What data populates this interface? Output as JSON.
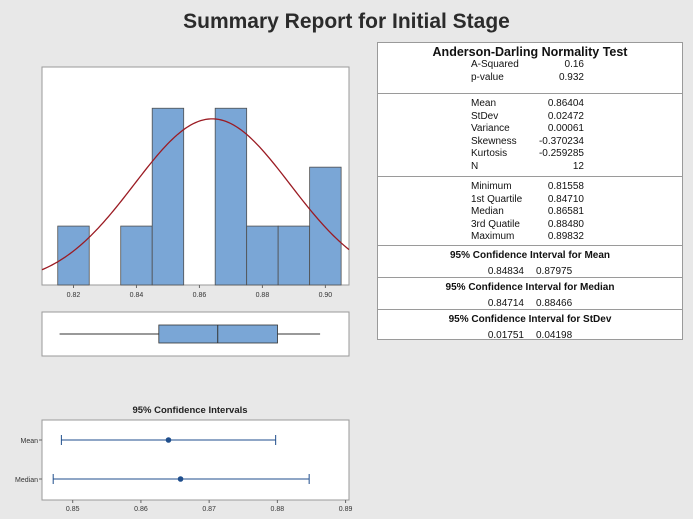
{
  "title": "Summary Report for Initial Stage",
  "stats": {
    "ad_test": {
      "title": "Anderson-Darling Normality Test",
      "rows": [
        {
          "label": "A-Squared",
          "value": "0.16"
        },
        {
          "label": "p-value",
          "value": "0.932"
        }
      ]
    },
    "descriptive": [
      {
        "label": "Mean",
        "value": "0.86404"
      },
      {
        "label": "StDev",
        "value": "0.02472"
      },
      {
        "label": "Variance",
        "value": "0.00061"
      },
      {
        "label": "Skewness",
        "value": "-0.370234"
      },
      {
        "label": "Kurtosis",
        "value": "-0.259285"
      },
      {
        "label": "N",
        "value": "12"
      }
    ],
    "quantiles": [
      {
        "label": "Minimum",
        "value": "0.81558"
      },
      {
        "label": "1st Quartile",
        "value": "0.84710"
      },
      {
        "label": "Median",
        "value": "0.86581"
      },
      {
        "label": "3rd Quatile",
        "value": "0.88480"
      },
      {
        "label": "Maximum",
        "value": "0.89832"
      }
    ],
    "ci": [
      {
        "title": "95% Confidence Interval for Mean",
        "lower": "0.84834",
        "upper": "0.87975"
      },
      {
        "title": "95% Confidence Interval for Median",
        "lower": "0.84714",
        "upper": "0.88466"
      },
      {
        "title": "95% Confidence Interval for StDev",
        "lower": "0.01751",
        "upper": "0.04198"
      }
    ]
  },
  "chart_data": [
    {
      "type": "bar",
      "subtype": "histogram",
      "bin_edges": [
        0.815,
        0.825,
        0.835,
        0.845,
        0.855,
        0.865,
        0.875,
        0.885,
        0.895,
        0.905
      ],
      "values": [
        1,
        0,
        1,
        3,
        0,
        3,
        1,
        1,
        2
      ],
      "xlim": [
        0.81,
        0.9075
      ],
      "ylim": [
        0,
        3.7
      ],
      "xticks": [
        "0.82",
        "0.84",
        "0.86",
        "0.88",
        "0.90"
      ],
      "normal_curve": {
        "mean": 0.86404,
        "stdev": 0.02472,
        "color": "#9b1b23"
      },
      "bar_color": "#7aa6d6",
      "grid": false
    },
    {
      "type": "boxplot",
      "min": 0.81558,
      "q1": 0.8471,
      "median": 0.86581,
      "q3": 0.8848,
      "max": 0.89832,
      "xlim": [
        0.81,
        0.9075
      ]
    },
    {
      "type": "interval",
      "title": "95% Confidence Intervals",
      "rows": [
        {
          "label": "Mean",
          "point": 0.86404,
          "lower": 0.84834,
          "upper": 0.87975
        },
        {
          "label": "Median",
          "point": 0.86581,
          "lower": 0.84714,
          "upper": 0.88466
        }
      ],
      "xticks": [
        "0.85",
        "0.86",
        "0.87",
        "0.88",
        "0.89"
      ],
      "xlim": [
        0.8455,
        0.8905
      ],
      "color": "#1f4e8c"
    }
  ]
}
